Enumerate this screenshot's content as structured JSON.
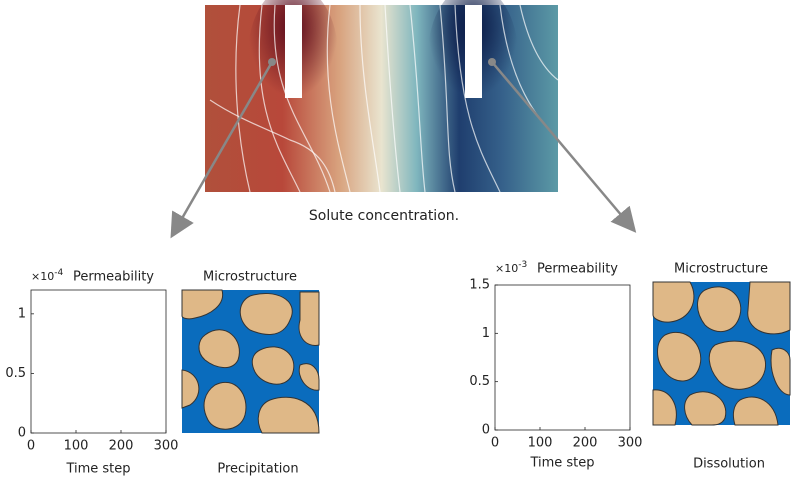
{
  "caption": "Solute concentration.",
  "chart_data": [
    {
      "type": "line",
      "title": "Permeability",
      "xlabel": "Time step",
      "xlim": [
        0,
        300
      ],
      "xticks": [
        0,
        100,
        200,
        300
      ],
      "ylim": [
        0,
        1.2
      ],
      "yticks": [
        0,
        0.5,
        1
      ],
      "y_multiplier": {
        "base": "×10",
        "exponent": "-4"
      }
    },
    {
      "type": "line",
      "title": "Permeability",
      "xlabel": "Time step",
      "xlim": [
        0,
        300
      ],
      "xticks": [
        0,
        100,
        200,
        300
      ],
      "ylim": [
        0,
        1.5
      ],
      "yticks": [
        0,
        0.5,
        1,
        1.5
      ],
      "y_multiplier": {
        "base": "×10",
        "exponent": "-3"
      }
    }
  ],
  "microstructures": [
    {
      "title": "Microstructure",
      "caption": "Precipitation"
    },
    {
      "title": "Microstructure",
      "caption": "Dissolution"
    }
  ]
}
